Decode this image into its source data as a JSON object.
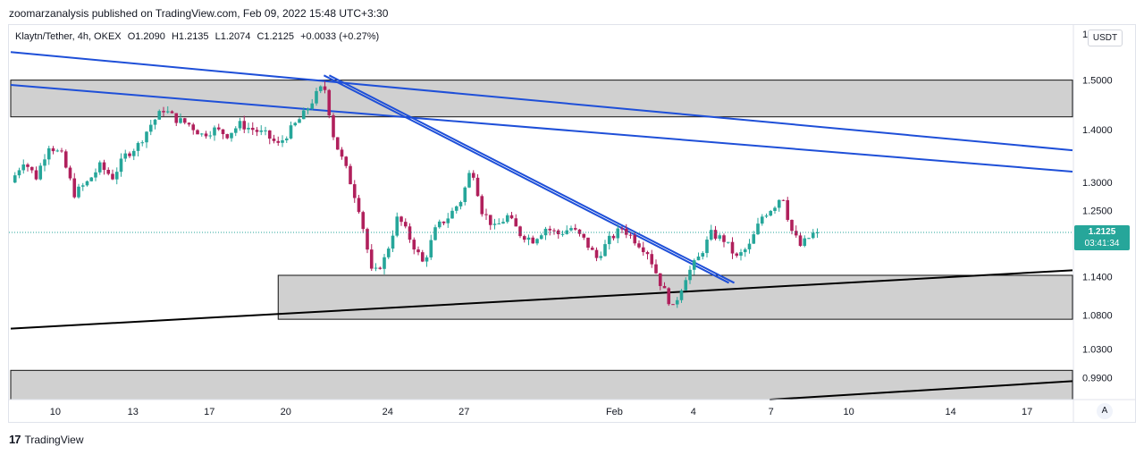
{
  "header": {
    "attribution": "zoomarzanalysis published on TradingView.com, Feb 09, 2022 15:48 UTC+3:30"
  },
  "legend": {
    "symbol": "Klaytn/Tether, 4h, OKEX",
    "open": "O1.2090",
    "high": "H1.2135",
    "low": "L1.2074",
    "close": "C1.2125",
    "change": "+0.0033 (+0.27%)"
  },
  "axis": {
    "unit": "USDT",
    "mode": "A",
    "partial_top_label": "1"
  },
  "footer": {
    "brand": "TradingView",
    "logo_text": "17"
  },
  "last_price": {
    "price": "1.2125",
    "countdown": "03:41:34"
  },
  "chart_data": {
    "type": "candlestick",
    "title": "",
    "symbol": "Klaytn/Tether",
    "interval": "4h",
    "exchange": "OKEX",
    "y_scale": "log",
    "ylim": [
      0.96,
      1.62
    ],
    "y_ticks": [
      "1.5000",
      "1.4000",
      "1.3000",
      "1.2500",
      "1.1400",
      "1.0800",
      "1.0300",
      "0.9900"
    ],
    "x_ticks": [
      "10",
      "13",
      "17",
      "20",
      "24",
      "27",
      "Feb",
      "4",
      "7",
      "10",
      "14",
      "17"
    ],
    "last_close": 1.2125,
    "colors": {
      "up": "#26a69a",
      "down": "#b0205c",
      "zone": "#c8c8c8",
      "trendline_blue": "#1e4fd8",
      "trendline_black": "#000000",
      "last_price": "#26a69a"
    },
    "close_path": [
      {
        "d": 0.0,
        "p": 1.3
      },
      {
        "d": 0.5,
        "p": 1.34
      },
      {
        "d": 1.0,
        "p": 1.31
      },
      {
        "d": 1.5,
        "p": 1.37
      },
      {
        "d": 2.0,
        "p": 1.35
      },
      {
        "d": 2.5,
        "p": 1.28
      },
      {
        "d": 3.0,
        "p": 1.3
      },
      {
        "d": 3.5,
        "p": 1.33
      },
      {
        "d": 4.0,
        "p": 1.31
      },
      {
        "d": 4.5,
        "p": 1.35
      },
      {
        "d": 5.0,
        "p": 1.37
      },
      {
        "d": 5.5,
        "p": 1.41
      },
      {
        "d": 6.0,
        "p": 1.44
      },
      {
        "d": 6.5,
        "p": 1.42
      },
      {
        "d": 7.0,
        "p": 1.41
      },
      {
        "d": 7.5,
        "p": 1.39
      },
      {
        "d": 8.0,
        "p": 1.4
      },
      {
        "d": 8.5,
        "p": 1.39
      },
      {
        "d": 9.0,
        "p": 1.41
      },
      {
        "d": 9.5,
        "p": 1.4
      },
      {
        "d": 10.0,
        "p": 1.39
      },
      {
        "d": 10.5,
        "p": 1.37
      },
      {
        "d": 11.0,
        "p": 1.4
      },
      {
        "d": 11.5,
        "p": 1.43
      },
      {
        "d": 12.0,
        "p": 1.47
      },
      {
        "d": 12.3,
        "p": 1.49
      },
      {
        "d": 12.7,
        "p": 1.38
      },
      {
        "d": 13.2,
        "p": 1.32
      },
      {
        "d": 13.7,
        "p": 1.25
      },
      {
        "d": 14.2,
        "p": 1.14
      },
      {
        "d": 14.7,
        "p": 1.17
      },
      {
        "d": 15.2,
        "p": 1.24
      },
      {
        "d": 15.7,
        "p": 1.2
      },
      {
        "d": 16.2,
        "p": 1.16
      },
      {
        "d": 16.7,
        "p": 1.22
      },
      {
        "d": 17.2,
        "p": 1.24
      },
      {
        "d": 17.7,
        "p": 1.27
      },
      {
        "d": 18.1,
        "p": 1.33
      },
      {
        "d": 18.5,
        "p": 1.25
      },
      {
        "d": 19.0,
        "p": 1.22
      },
      {
        "d": 19.5,
        "p": 1.24
      },
      {
        "d": 20.0,
        "p": 1.21
      },
      {
        "d": 20.5,
        "p": 1.2
      },
      {
        "d": 21.0,
        "p": 1.22
      },
      {
        "d": 21.5,
        "p": 1.21
      },
      {
        "d": 22.0,
        "p": 1.22
      },
      {
        "d": 22.5,
        "p": 1.2
      },
      {
        "d": 23.0,
        "p": 1.17
      },
      {
        "d": 23.5,
        "p": 1.2
      },
      {
        "d": 24.0,
        "p": 1.22
      },
      {
        "d": 24.5,
        "p": 1.2
      },
      {
        "d": 25.0,
        "p": 1.18
      },
      {
        "d": 25.5,
        "p": 1.13
      },
      {
        "d": 26.0,
        "p": 1.09
      },
      {
        "d": 26.5,
        "p": 1.14
      },
      {
        "d": 27.0,
        "p": 1.17
      },
      {
        "d": 27.5,
        "p": 1.21
      },
      {
        "d": 28.0,
        "p": 1.2
      },
      {
        "d": 28.5,
        "p": 1.17
      },
      {
        "d": 29.0,
        "p": 1.19
      },
      {
        "d": 29.5,
        "p": 1.24
      },
      {
        "d": 30.0,
        "p": 1.26
      },
      {
        "d": 30.3,
        "p": 1.28
      },
      {
        "d": 30.6,
        "p": 1.22
      },
      {
        "d": 31.0,
        "p": 1.19
      },
      {
        "d": 31.5,
        "p": 1.21
      },
      {
        "d": 31.8,
        "p": 1.2125
      }
    ],
    "zones": [
      {
        "from_day": 0,
        "to_day": 44,
        "high": 1.5,
        "low": 1.425
      },
      {
        "from_day": 10.5,
        "to_day": 44,
        "high": 1.142,
        "low": 1.074
      },
      {
        "from_day": 0,
        "to_day": 44,
        "high": 1.0,
        "low": 0.96
      }
    ],
    "trendlines": [
      {
        "color": "blue",
        "from": {
          "day": 0,
          "price": 1.56
        },
        "to": {
          "day": 44,
          "price": 1.36
        }
      },
      {
        "color": "blue",
        "from": {
          "day": 0,
          "price": 1.49
        },
        "to": {
          "day": 44,
          "price": 1.32
        }
      },
      {
        "color": "blue-double",
        "from": {
          "day": 12.4,
          "price": 1.51
        },
        "to": {
          "day": 28.3,
          "price": 1.13
        }
      },
      {
        "color": "black",
        "from": {
          "day": 0,
          "price": 1.06
        },
        "to": {
          "day": 44,
          "price": 1.15
        }
      },
      {
        "color": "black",
        "from": {
          "day": 29.8,
          "price": 0.96
        },
        "to": {
          "day": 44,
          "price": 0.985
        }
      }
    ]
  }
}
